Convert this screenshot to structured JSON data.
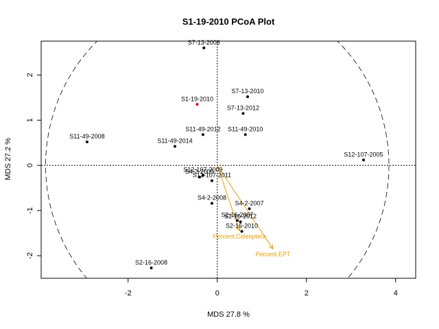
{
  "chart_data": {
    "type": "scatter",
    "title": "S1-19-2010 PCoA Plot",
    "xlabel": "MDS  27.8 %",
    "ylabel": "MDS  27.2 %",
    "xlim": [
      -3.95,
      4.45
    ],
    "ylim": [
      -2.5,
      2.75
    ],
    "xticks": [
      -2,
      0,
      2,
      4
    ],
    "yticks": [
      -2,
      -1,
      0,
      1,
      2
    ],
    "grid": false,
    "reference_lines": {
      "x": 0,
      "y": 0,
      "style": "dotted"
    },
    "circle": {
      "center": [
        0,
        0
      ],
      "radius": 3.85,
      "style": "dashed"
    },
    "highlight_color": "#e00000",
    "point_color": "#000000",
    "vector_color": "#e8a000",
    "points": [
      {
        "label": "S7-13-2008",
        "x": -0.3,
        "y": 2.6
      },
      {
        "label": "S7-13-2010",
        "x": 0.68,
        "y": 1.52
      },
      {
        "label": "S1-19-2010",
        "x": -0.45,
        "y": 1.35,
        "highlight": true
      },
      {
        "label": "S7-13-2012",
        "x": 0.58,
        "y": 1.15
      },
      {
        "label": "S11-49-2012",
        "x": -0.32,
        "y": 0.68
      },
      {
        "label": "S11-49-2010",
        "x": 0.63,
        "y": 0.68
      },
      {
        "label": "S11-49-2008",
        "x": -2.92,
        "y": 0.52
      },
      {
        "label": "S11-49-2014",
        "x": -0.95,
        "y": 0.42
      },
      {
        "label": "S12-107-2005",
        "x": 3.28,
        "y": 0.12
      },
      {
        "label": "S12-107-2009",
        "x": -0.32,
        "y": -0.22
      },
      {
        "label": "S4-2-2005",
        "x": -0.4,
        "y": -0.26
      },
      {
        "label": "S12-107-2011",
        "x": -0.12,
        "y": -0.34
      },
      {
        "label": "S4-2-2008",
        "x": -0.12,
        "y": -0.84
      },
      {
        "label": "S4-2-2007",
        "x": 0.72,
        "y": -0.96
      },
      {
        "label": "S2-16-2007",
        "x": 0.45,
        "y": -1.22
      },
      {
        "label": "S2-16-2012",
        "x": 0.52,
        "y": -1.25
      },
      {
        "label": "S2-16-2010",
        "x": 0.55,
        "y": -1.46
      },
      {
        "label": "S2-16-2008",
        "x": -1.48,
        "y": -2.27
      }
    ],
    "vectors": [
      {
        "label": "Percent.Coleoptera",
        "x": 0.5,
        "y": -1.45
      },
      {
        "label": "Percent.EPT",
        "x": 1.25,
        "y": -1.85
      }
    ]
  }
}
